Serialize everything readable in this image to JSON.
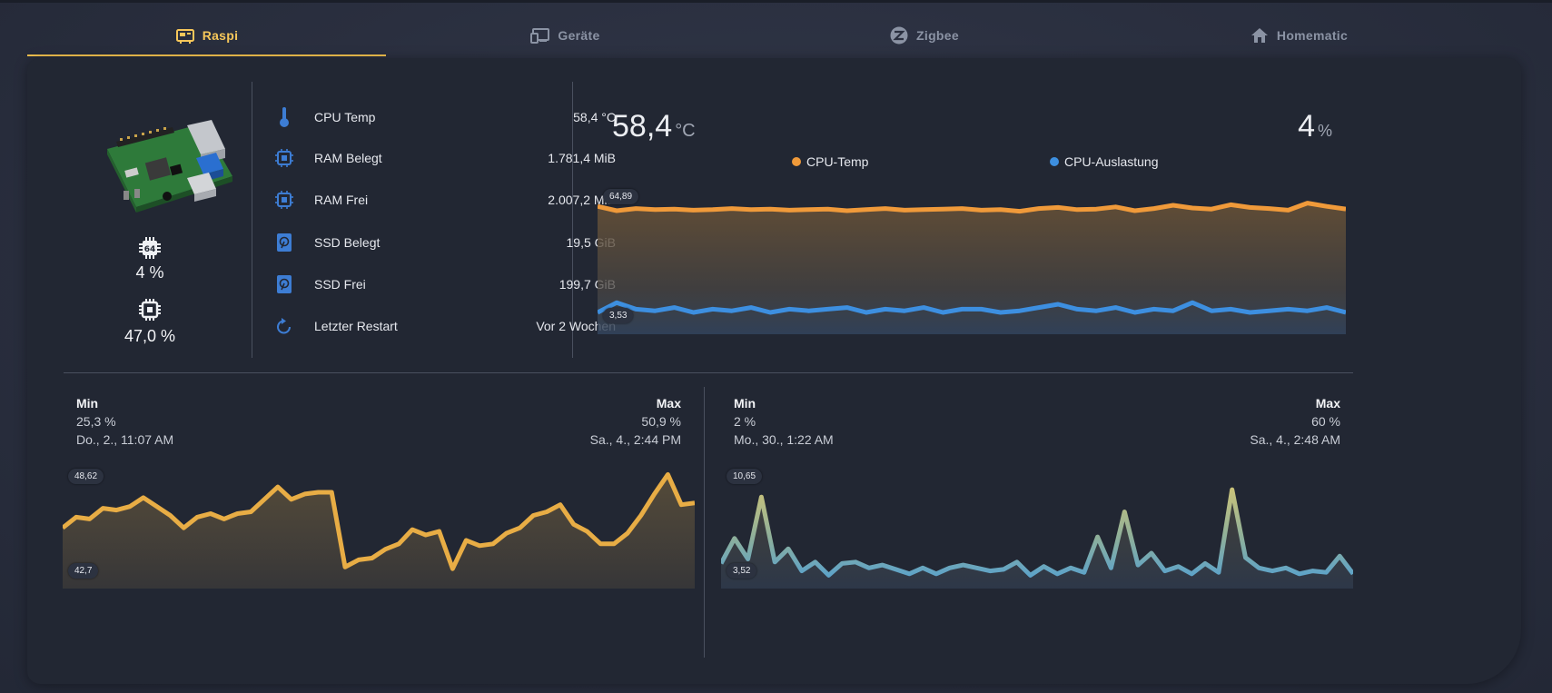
{
  "tabs": [
    {
      "label": "Raspi",
      "icon": "raspberry-board-icon",
      "active": true
    },
    {
      "label": "Geräte",
      "icon": "devices-icon",
      "active": false
    },
    {
      "label": "Zigbee",
      "icon": "zigbee-icon",
      "active": false
    },
    {
      "label": "Homematic",
      "icon": "home-icon",
      "active": false
    }
  ],
  "colors": {
    "accent": "#f2c14e",
    "temp": "#f09a3a",
    "load": "#3d8fe0",
    "card": "#222733"
  },
  "left": {
    "cpu_load": "4 %",
    "ram_usage": "47,0 %"
  },
  "info": [
    {
      "icon": "thermometer-icon",
      "label": "CPU Temp",
      "value": "58,4 °C"
    },
    {
      "icon": "chip-icon",
      "label": "RAM Belegt",
      "value": "1.781,4 MiB"
    },
    {
      "icon": "chip-icon",
      "label": "RAM Frei",
      "value": "2.007,2 MiB"
    },
    {
      "icon": "ssd-icon",
      "label": "SSD Belegt",
      "value": "19,5 GiB"
    },
    {
      "icon": "ssd-icon",
      "label": "SSD Frei",
      "value": "199,7 GiB"
    },
    {
      "icon": "restart-icon",
      "label": "Letzter Restart",
      "value": "Vor 2 Wochen"
    }
  ],
  "main_chart": {
    "temp_value": "58,4",
    "temp_unit": "°C",
    "load_value": "4",
    "load_unit": "%",
    "legend_temp": "CPU-Temp",
    "legend_load": "CPU-Auslastung",
    "badge_top": "64,89",
    "badge_bottom": "3,53"
  },
  "left_stats": {
    "min_label": "Min",
    "min_value": "25,3 %",
    "min_time": "Do., 2., 11:07 AM",
    "max_label": "Max",
    "max_value": "50,9 %",
    "max_time": "Sa., 4., 2:44 PM",
    "badge_top": "48,62",
    "badge_bottom": "42,7"
  },
  "right_stats": {
    "min_label": "Min",
    "min_value": "2 %",
    "min_time": "Mo., 30., 1:22 AM",
    "max_label": "Max",
    "max_value": "60 %",
    "max_time": "Sa., 4., 2:48 AM",
    "badge_top": "10,65",
    "badge_bottom": "3,52"
  },
  "chart_data": [
    {
      "type": "line",
      "series": [
        {
          "name": "CPU-Temp",
          "values": [
            64,
            63.2,
            63.6,
            63.4,
            63.5,
            63.3,
            63.4,
            63.6,
            63.4,
            63.5,
            63.3,
            63.4,
            63.5,
            63.2,
            63.4,
            63.6,
            63.3,
            63.4,
            63.5,
            63.6,
            63.3,
            63.4,
            63.1,
            63.6,
            63.8,
            63.4,
            63.5,
            63.9,
            63.2,
            63.6,
            64.2,
            63.7,
            63.5,
            64.3,
            63.8,
            63.6,
            63.3,
            64.6,
            64.0,
            63.5
          ]
        },
        {
          "name": "CPU-Auslastung",
          "values": [
            3.6,
            4.2,
            3.8,
            3.7,
            3.9,
            3.6,
            3.8,
            3.7,
            3.9,
            3.6,
            3.8,
            3.7,
            3.8,
            3.9,
            3.6,
            3.8,
            3.7,
            3.9,
            3.6,
            3.8,
            3.8,
            3.6,
            3.7,
            3.9,
            4.1,
            3.8,
            3.7,
            3.9,
            3.6,
            3.8,
            3.7,
            4.2,
            3.7,
            3.8,
            3.6,
            3.7,
            3.8,
            3.7,
            3.9,
            3.6
          ]
        }
      ]
    },
    {
      "type": "line",
      "values": [
        45.6,
        46.2,
        46.1,
        46.7,
        46.6,
        46.8,
        47.3,
        46.8,
        46.3,
        45.6,
        46.2,
        46.4,
        46.1,
        46.4,
        46.5,
        47.2,
        47.9,
        47.2,
        47.5,
        47.6,
        47.6,
        43.4,
        43.8,
        43.9,
        44.4,
        44.7,
        45.5,
        45.2,
        45.4,
        43.3,
        44.9,
        44.6,
        44.7,
        45.3,
        45.6,
        46.3,
        46.5,
        46.9,
        45.8,
        45.4,
        44.7,
        44.7,
        45.3,
        46.3,
        47.5,
        48.6,
        46.9,
        47.0
      ]
    },
    {
      "type": "line",
      "values": [
        4.6,
        6.3,
        4.9,
        9.1,
        4.7,
        5.6,
        4.1,
        4.7,
        3.8,
        4.6,
        4.7,
        4.3,
        4.5,
        4.2,
        3.9,
        4.3,
        3.9,
        4.3,
        4.5,
        4.3,
        4.1,
        4.2,
        4.7,
        3.8,
        4.4,
        3.9,
        4.3,
        4.0,
        6.4,
        4.3,
        8.1,
        4.5,
        5.3,
        4.1,
        4.4,
        3.9,
        4.6,
        4.0,
        9.6,
        5.0,
        4.3,
        4.1,
        4.3,
        3.9,
        4.1,
        4.0,
        5.1,
        3.9
      ]
    }
  ]
}
